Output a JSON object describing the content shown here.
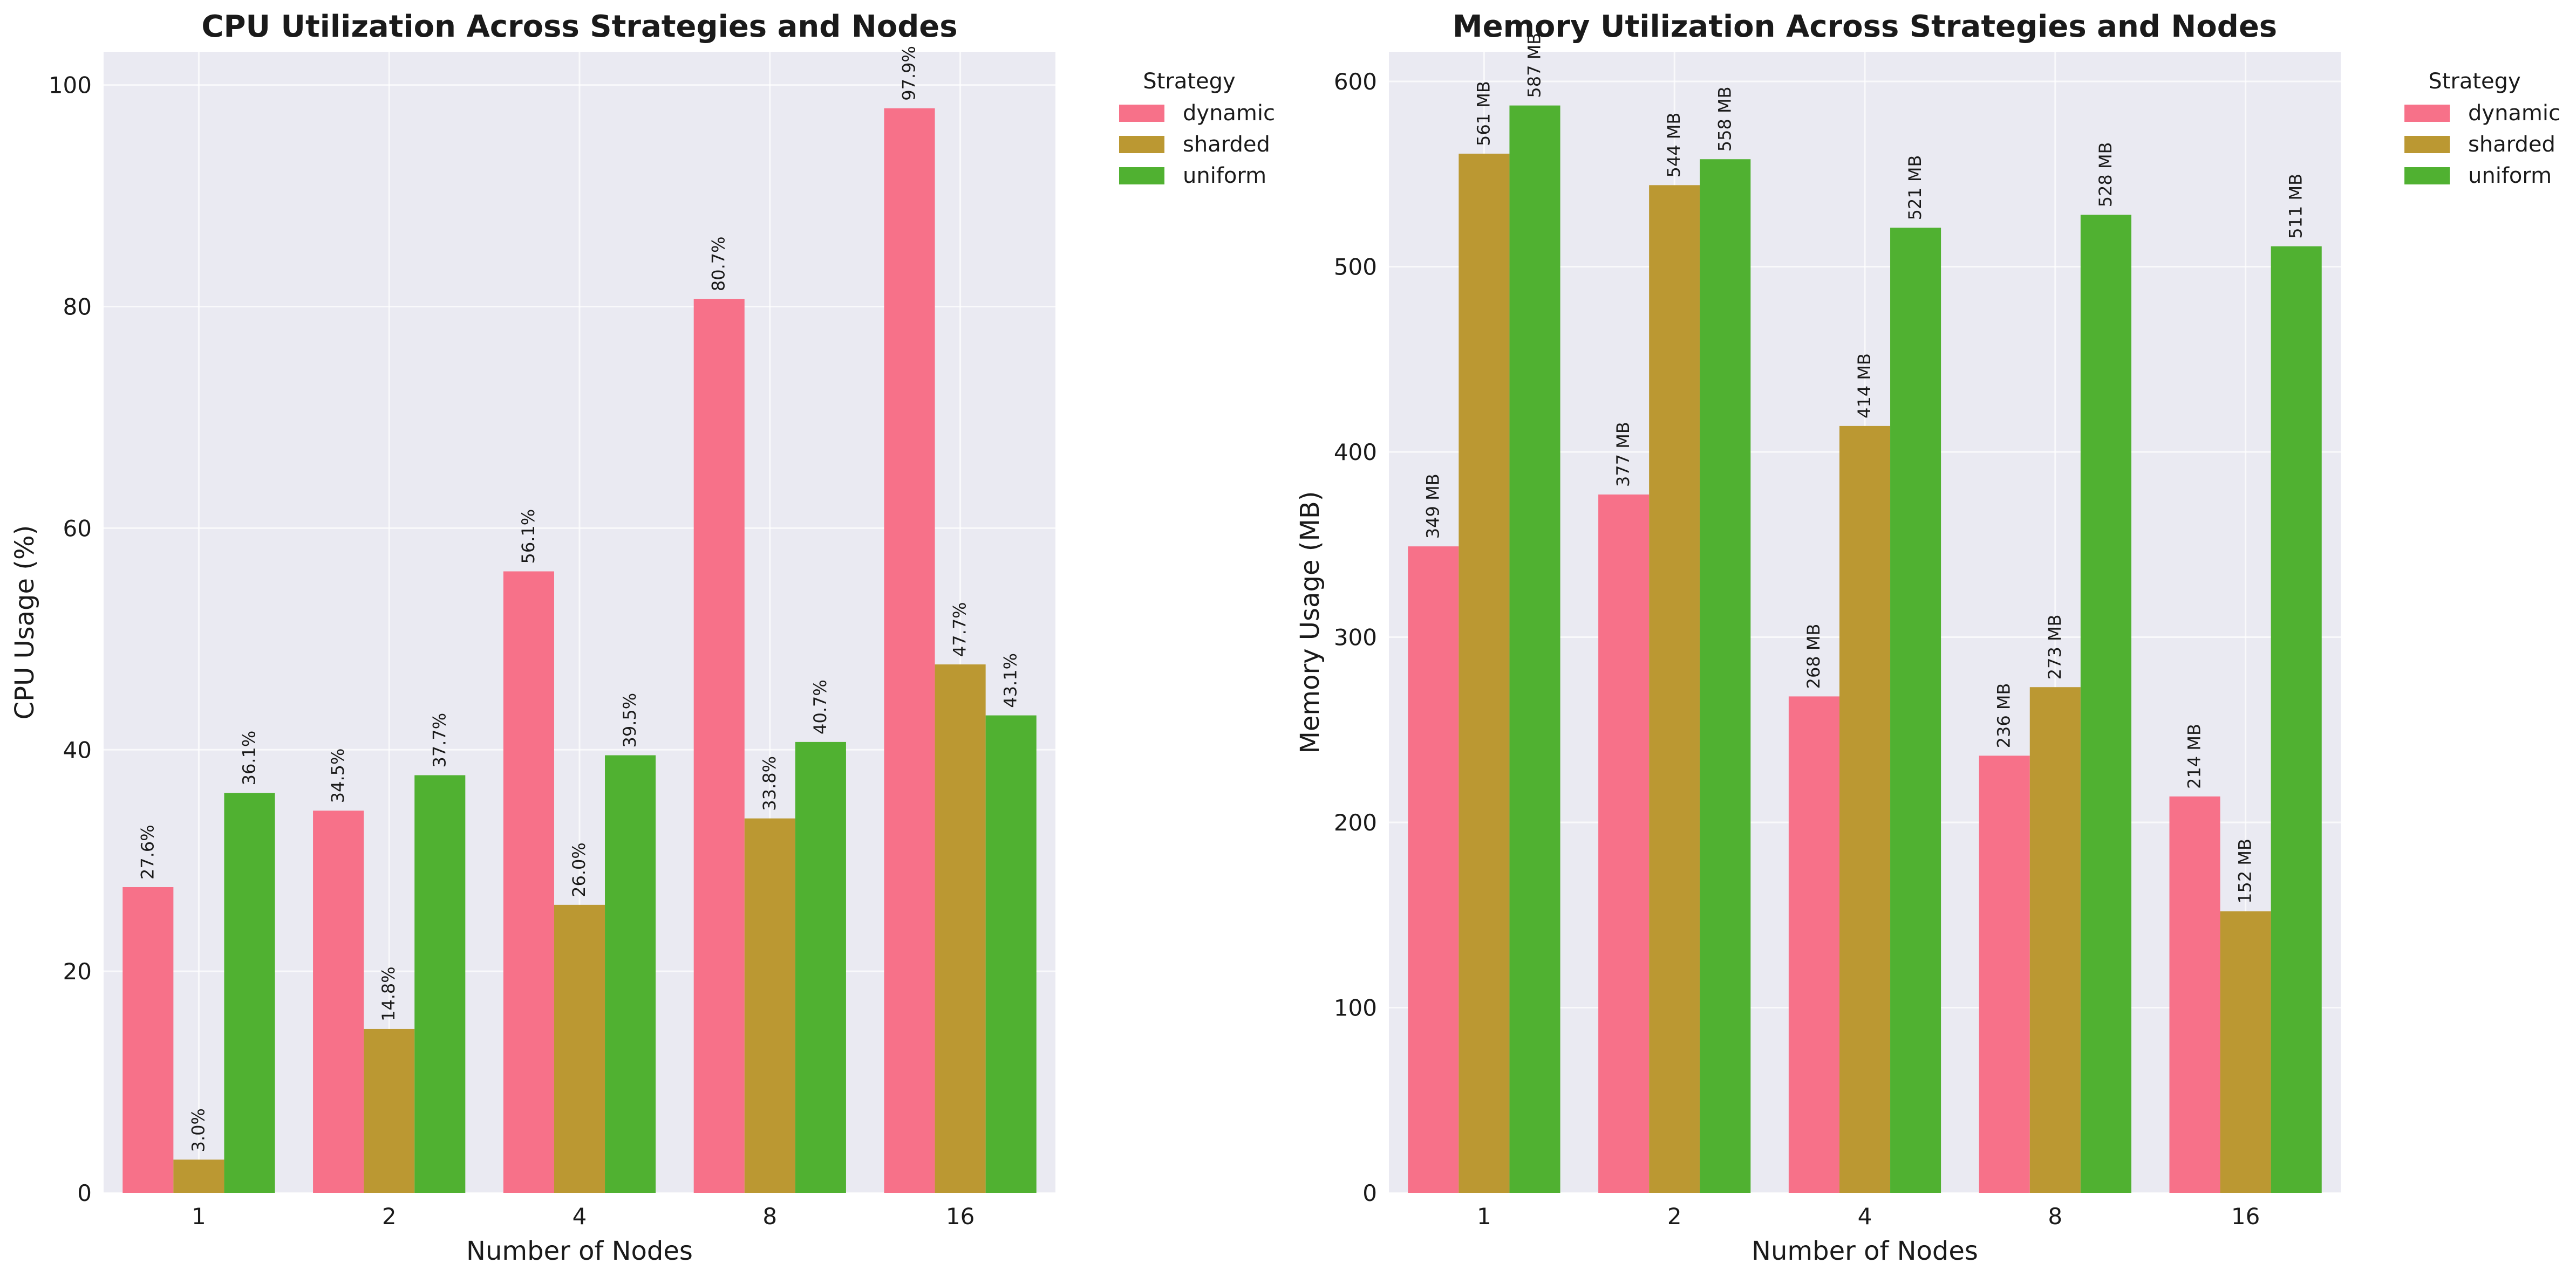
{
  "chart_data": [
    {
      "type": "bar",
      "title": "CPU Utilization Across Strategies and Nodes",
      "xlabel": "Number of Nodes",
      "ylabel": "CPU Usage (%)",
      "categories": [
        "1",
        "2",
        "4",
        "8",
        "16"
      ],
      "ylim": [
        0,
        103
      ],
      "yticks": [
        0,
        20,
        40,
        60,
        80,
        100
      ],
      "grid": true,
      "legend": {
        "title": "Strategy",
        "placement": "outside-top-right"
      },
      "label_format": "{v}%",
      "label_decimals": 1,
      "series": [
        {
          "name": "dynamic",
          "color": "#f77189",
          "values": [
            27.6,
            34.5,
            56.1,
            80.7,
            97.9
          ]
        },
        {
          "name": "sharded",
          "color": "#bb9832",
          "values": [
            3.0,
            14.8,
            26.0,
            33.8,
            47.7
          ]
        },
        {
          "name": "uniform",
          "color": "#50b131",
          "values": [
            36.1,
            37.7,
            39.5,
            40.7,
            43.1
          ]
        }
      ]
    },
    {
      "type": "bar",
      "title": "Memory Utilization Across Strategies and Nodes",
      "xlabel": "Number of Nodes",
      "ylabel": "Memory Usage (MB)",
      "categories": [
        "1",
        "2",
        "4",
        "8",
        "16"
      ],
      "ylim": [
        0,
        616
      ],
      "yticks": [
        0,
        100,
        200,
        300,
        400,
        500,
        600
      ],
      "grid": true,
      "legend": {
        "title": "Strategy",
        "placement": "outside-top-right"
      },
      "label_format": "{v} MB",
      "label_decimals": 0,
      "series": [
        {
          "name": "dynamic",
          "color": "#f77189",
          "values": [
            349,
            377,
            268,
            236,
            214
          ]
        },
        {
          "name": "sharded",
          "color": "#bb9832",
          "values": [
            561,
            544,
            414,
            273,
            152
          ]
        },
        {
          "name": "uniform",
          "color": "#50b131",
          "values": [
            587,
            558,
            521,
            528,
            511
          ]
        }
      ]
    }
  ]
}
